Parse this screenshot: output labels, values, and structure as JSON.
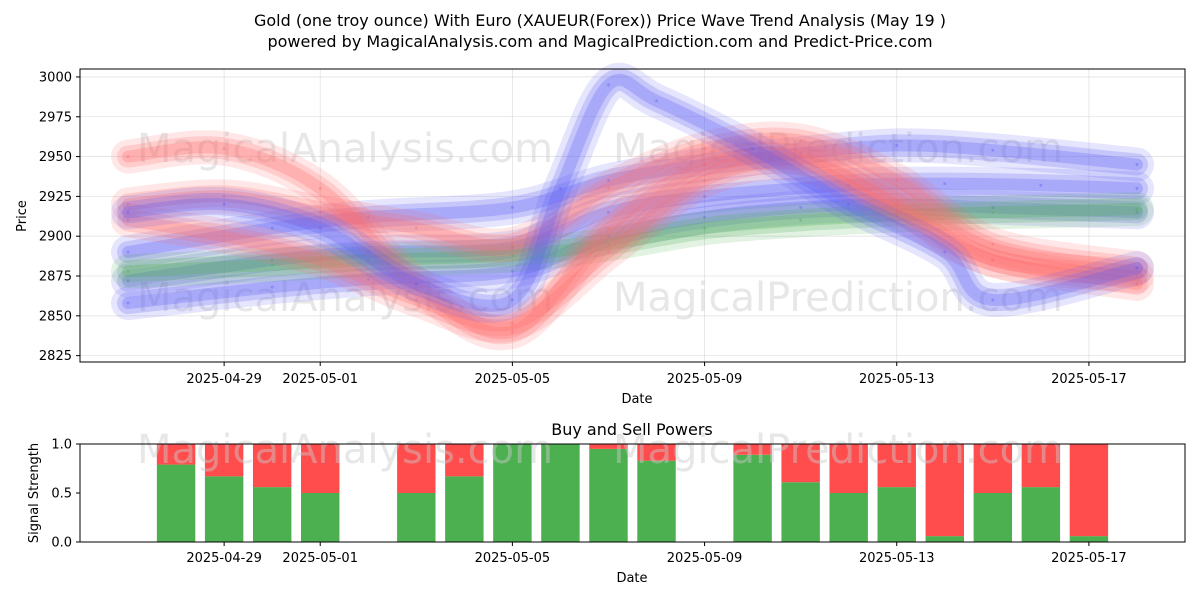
{
  "figure": {
    "title_line1": "Gold (one troy ounce) With Euro (XAUEUR(Forex)) Price Wave Trend Analysis (May 19 )",
    "title_line2": "powered by MagicalAnalysis.com and MagicalPrediction.com and Predict-Price.com",
    "watermarks": [
      "MagicalAnalysis.com",
      "MagicalPrediction.com"
    ]
  },
  "chart_data": [
    {
      "type": "line",
      "title": "",
      "xlabel": "Date",
      "ylabel": "Price",
      "xlim": [
        "2025-04-26",
        "2025-05-19"
      ],
      "ylim": [
        2821,
        3005
      ],
      "x_ticks": [
        "2025-04-29",
        "2025-05-01",
        "2025-05-05",
        "2025-05-09",
        "2025-05-13",
        "2025-05-17"
      ],
      "y_ticks": [
        2825,
        2850,
        2875,
        2900,
        2925,
        2950,
        2975,
        3000
      ],
      "grid": true,
      "colors": {
        "red": "#ff6b6b",
        "green": "#4caf50",
        "blue": "#5c5cf5"
      },
      "series": [
        {
          "color": "blue",
          "x": [
            "2025-04-27",
            "2025-04-30",
            "2025-05-02",
            "2025-05-05",
            "2025-05-07",
            "2025-05-09",
            "2025-05-12",
            "2025-05-14",
            "2025-05-16",
            "2025-05-18"
          ],
          "values": [
            2872,
            2885,
            2890,
            2893,
            2915,
            2925,
            2932,
            2933,
            2932,
            2930
          ]
        },
        {
          "color": "blue",
          "x": [
            "2025-04-27",
            "2025-04-30",
            "2025-05-02",
            "2025-05-05",
            "2025-05-07",
            "2025-05-09",
            "2025-05-11",
            "2025-05-13",
            "2025-05-15",
            "2025-05-18"
          ],
          "values": [
            2890,
            2905,
            2912,
            2918,
            2935,
            2945,
            2952,
            2957,
            2954,
            2945
          ]
        },
        {
          "color": "blue",
          "x": [
            "2025-04-27",
            "2025-04-30",
            "2025-05-02",
            "2025-05-05",
            "2025-05-07",
            "2025-05-09",
            "2025-05-11",
            "2025-05-13",
            "2025-05-15",
            "2025-05-18"
          ],
          "values": [
            2858,
            2868,
            2873,
            2878,
            2900,
            2912,
            2918,
            2920,
            2918,
            2915
          ]
        },
        {
          "color": "green",
          "x": [
            "2025-04-27",
            "2025-04-30",
            "2025-05-02",
            "2025-05-05",
            "2025-05-07",
            "2025-05-09",
            "2025-05-11",
            "2025-05-13",
            "2025-05-15",
            "2025-05-18"
          ],
          "values": [
            2878,
            2882,
            2885,
            2888,
            2895,
            2905,
            2910,
            2913,
            2915,
            2917
          ]
        },
        {
          "color": "red",
          "x": [
            "2025-04-27",
            "2025-04-29",
            "2025-05-01",
            "2025-05-03",
            "2025-05-05",
            "2025-05-07",
            "2025-05-09",
            "2025-05-11",
            "2025-05-13",
            "2025-05-15",
            "2025-05-18"
          ],
          "values": [
            2920,
            2925,
            2915,
            2905,
            2895,
            2930,
            2955,
            2960,
            2935,
            2895,
            2880
          ]
        },
        {
          "color": "red",
          "x": [
            "2025-04-27",
            "2025-04-29",
            "2025-05-01",
            "2025-05-03",
            "2025-05-05",
            "2025-05-07",
            "2025-05-09",
            "2025-05-11",
            "2025-05-13",
            "2025-05-15",
            "2025-05-18"
          ],
          "values": [
            2950,
            2955,
            2930,
            2870,
            2840,
            2905,
            2945,
            2950,
            2920,
            2885,
            2875
          ]
        },
        {
          "color": "red",
          "x": [
            "2025-04-27",
            "2025-04-29",
            "2025-05-01",
            "2025-05-03",
            "2025-05-05",
            "2025-05-07",
            "2025-05-09",
            "2025-05-11",
            "2025-05-13",
            "2025-05-15",
            "2025-05-18"
          ],
          "values": [
            2910,
            2900,
            2885,
            2860,
            2845,
            2890,
            2935,
            2945,
            2915,
            2885,
            2870
          ]
        },
        {
          "color": "blue",
          "x": [
            "2025-04-27",
            "2025-04-29",
            "2025-05-01",
            "2025-05-03",
            "2025-05-05",
            "2025-05-06",
            "2025-05-07",
            "2025-05-08",
            "2025-05-10",
            "2025-05-12",
            "2025-05-14",
            "2025-05-15",
            "2025-05-18"
          ],
          "values": [
            2915,
            2920,
            2905,
            2870,
            2860,
            2930,
            2995,
            2985,
            2955,
            2920,
            2890,
            2860,
            2880
          ]
        }
      ]
    },
    {
      "type": "bar",
      "stacked": true,
      "title": "Buy and Sell Powers",
      "xlabel": "Date",
      "ylabel": "Signal Strength",
      "xlim": [
        "2025-04-26",
        "2025-05-19"
      ],
      "ylim": [
        0,
        1
      ],
      "x_ticks": [
        "2025-04-29",
        "2025-05-01",
        "2025-05-05",
        "2025-05-09",
        "2025-05-13",
        "2025-05-17"
      ],
      "y_ticks": [
        "0.0",
        "0.5",
        "1.0"
      ],
      "colors": {
        "buy": "#4caf50",
        "sell": "#ff4d4d"
      },
      "categories": [
        "2025-04-28",
        "2025-04-29",
        "2025-04-30",
        "2025-05-01",
        "2025-05-03",
        "2025-05-04",
        "2025-05-05",
        "2025-05-06",
        "2025-05-07",
        "2025-05-08",
        "2025-05-10",
        "2025-05-11",
        "2025-05-12",
        "2025-05-13",
        "2025-05-14",
        "2025-05-15",
        "2025-05-16",
        "2025-05-17"
      ],
      "series": [
        {
          "key": "buy",
          "values": [
            0.79,
            0.67,
            0.56,
            0.5,
            0.5,
            0.67,
            1.0,
            1.0,
            0.95,
            0.83,
            0.89,
            0.61,
            0.5,
            0.56,
            0.06,
            0.5,
            0.56,
            0.06
          ]
        },
        {
          "key": "sell",
          "values": [
            0.21,
            0.33,
            0.44,
            0.5,
            0.5,
            0.33,
            0.0,
            0.0,
            0.05,
            0.17,
            0.11,
            0.39,
            0.5,
            0.44,
            0.94,
            0.5,
            0.44,
            0.94
          ]
        }
      ]
    }
  ]
}
